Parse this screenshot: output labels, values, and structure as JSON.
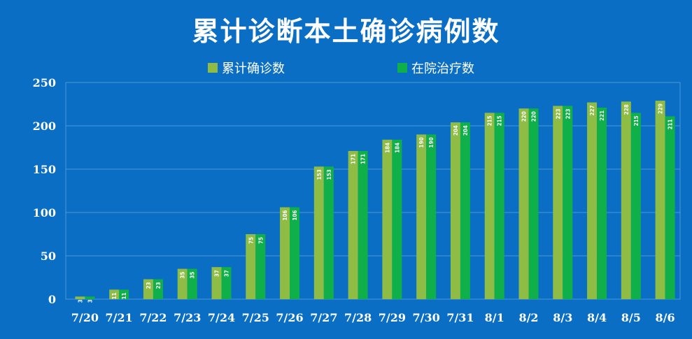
{
  "chart_data": {
    "type": "bar",
    "title": "累计诊断本土确诊病例数",
    "xlabel": "",
    "ylabel": "",
    "ylim": [
      0,
      250
    ],
    "yticks": [
      0,
      50,
      100,
      150,
      200,
      250
    ],
    "grid": true,
    "legend_position": "top",
    "categories": [
      "7/20",
      "7/21",
      "7/22",
      "7/23",
      "7/24",
      "7/25",
      "7/26",
      "7/27",
      "7/28",
      "7/29",
      "7/30",
      "7/31",
      "8/1",
      "8/2",
      "8/3",
      "8/4",
      "8/5",
      "8/6"
    ],
    "series": [
      {
        "name": "累计确诊数",
        "color": "#8fbc45",
        "values": [
          3,
          11,
          23,
          35,
          37,
          75,
          106,
          153,
          171,
          184,
          190,
          204,
          215,
          220,
          223,
          227,
          228,
          229
        ]
      },
      {
        "name": "在院治疗数",
        "color": "#0fb049",
        "values": [
          3,
          11,
          23,
          35,
          37,
          75,
          106,
          153,
          171,
          184,
          190,
          204,
          215,
          220,
          223,
          221,
          215,
          211
        ]
      }
    ],
    "background_color": "#0a6ec4",
    "gridline_color": "#4f98d6"
  }
}
